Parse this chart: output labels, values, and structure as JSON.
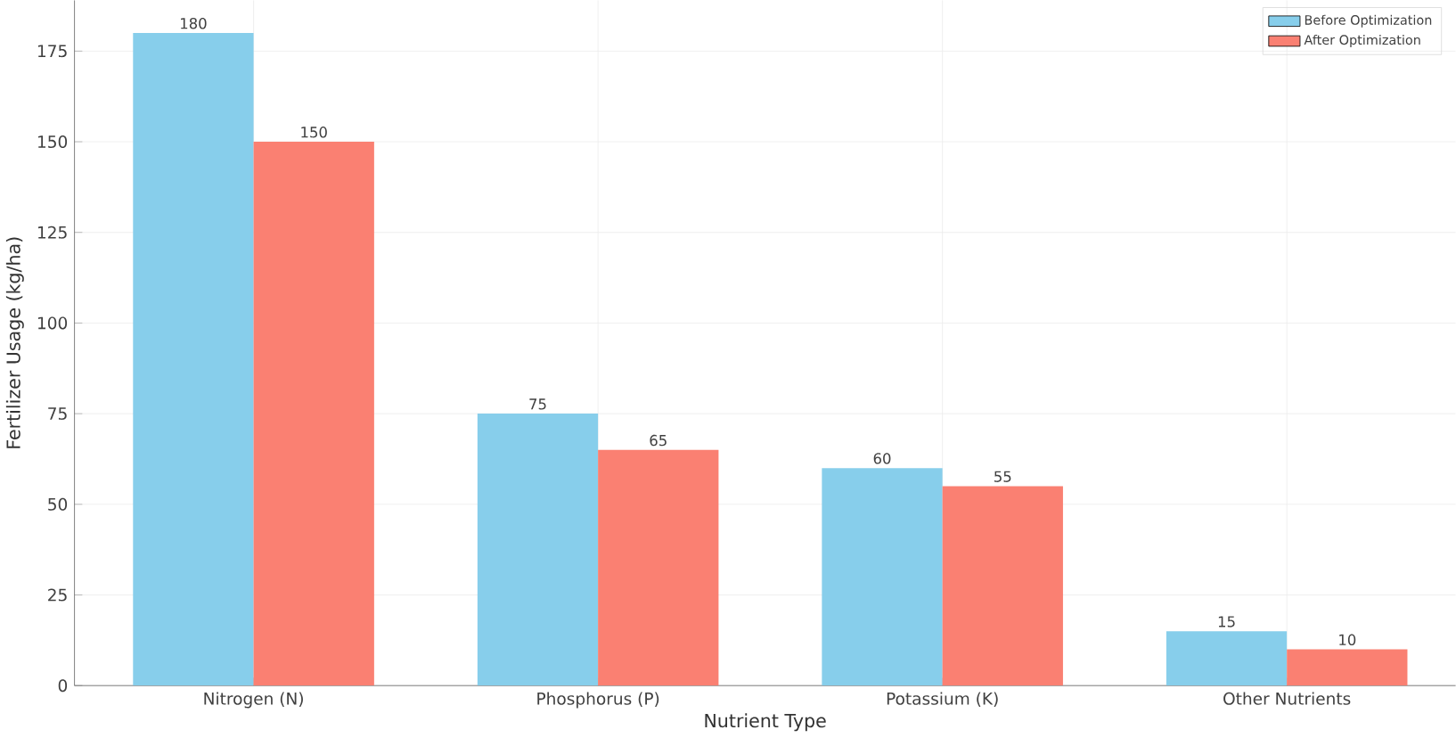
{
  "chart_data": {
    "type": "bar",
    "xlabel": "Nutrient Type",
    "ylabel": "Fertilizer Usage (kg/ha)",
    "categories": [
      "Nitrogen (N)",
      "Phosphorus (P)",
      "Potassium (K)",
      "Other Nutrients"
    ],
    "series": [
      {
        "name": "Before Optimization",
        "color": "#87ceeb",
        "values": [
          180,
          75,
          60,
          15
        ]
      },
      {
        "name": "After Optimization",
        "color": "#fa8072",
        "values": [
          150,
          65,
          55,
          10
        ]
      }
    ],
    "ylim": [
      0,
      189
    ],
    "yticks": [
      0,
      25,
      50,
      75,
      100,
      125,
      150,
      175
    ],
    "grid": true,
    "legend": "top right",
    "data_labels": true
  }
}
